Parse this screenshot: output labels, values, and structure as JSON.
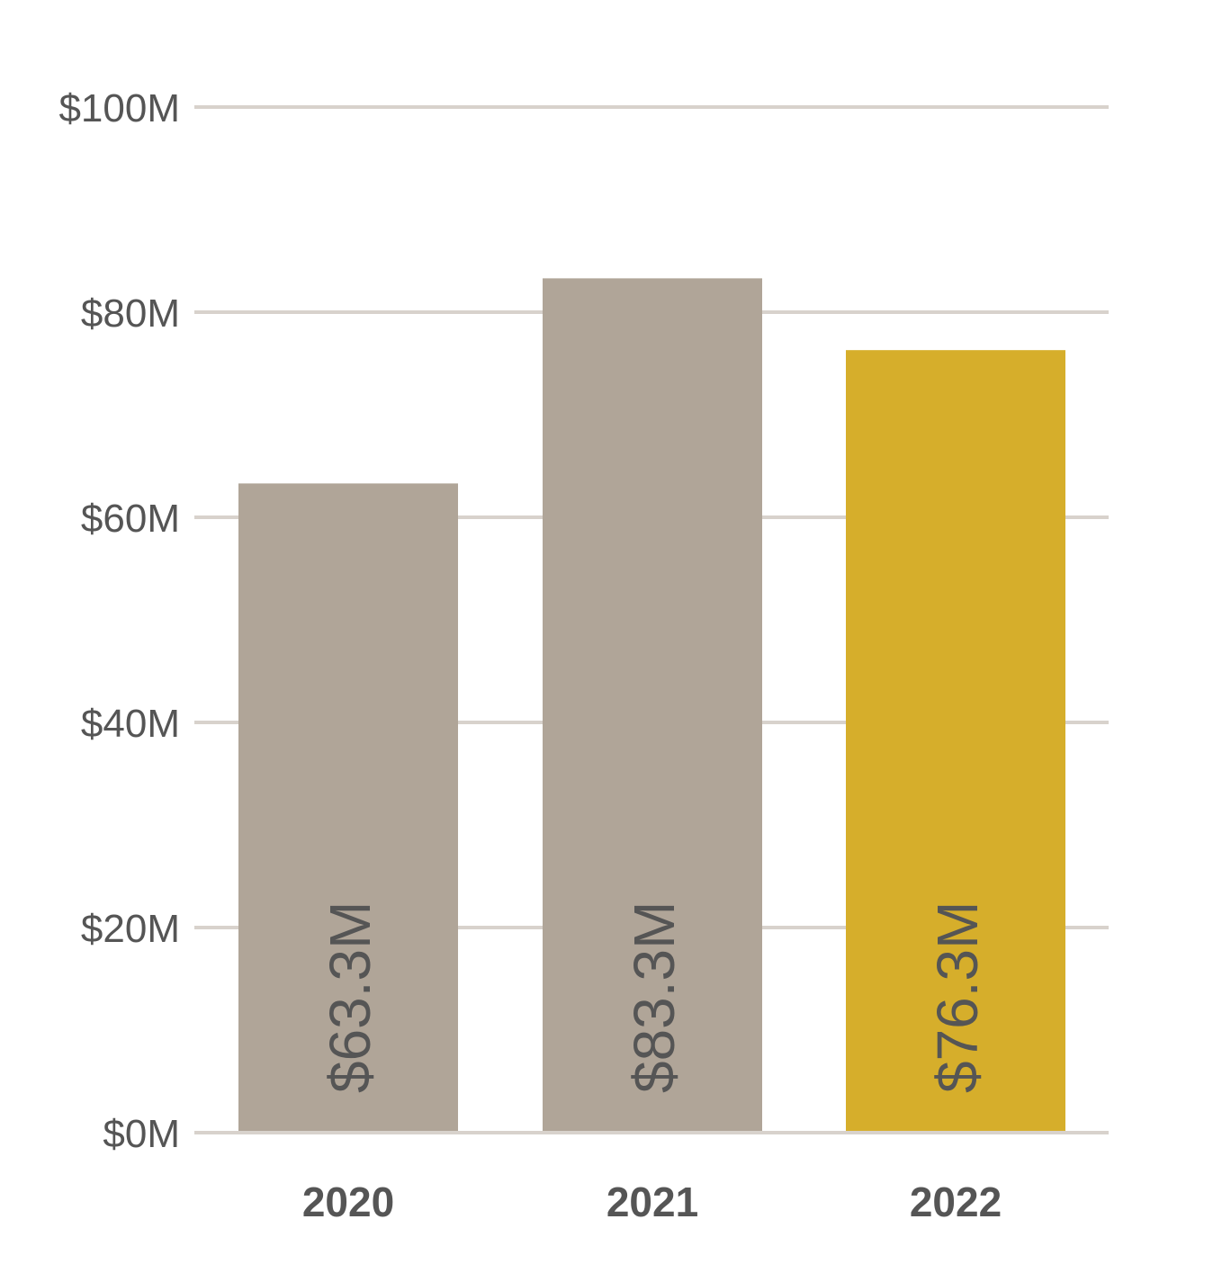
{
  "chart_data": {
    "type": "bar",
    "categories": [
      "2020",
      "2021",
      "2022"
    ],
    "values": [
      63.3,
      83.3,
      76.3
    ],
    "value_labels": [
      "$63.3M",
      "$83.3M",
      "$76.3M"
    ],
    "bar_colors": [
      "#b0a598",
      "#b0a598",
      "#d6ae2b"
    ],
    "ylim": [
      0,
      100
    ],
    "yticks": [
      0,
      20,
      40,
      60,
      80,
      100
    ],
    "ytick_labels": [
      "$0M",
      "$20M",
      "$40M",
      "$60M",
      "$80M",
      "$100M"
    ],
    "grid": true,
    "colors": {
      "grid": "#d8d2cc",
      "text": "#555555"
    }
  }
}
